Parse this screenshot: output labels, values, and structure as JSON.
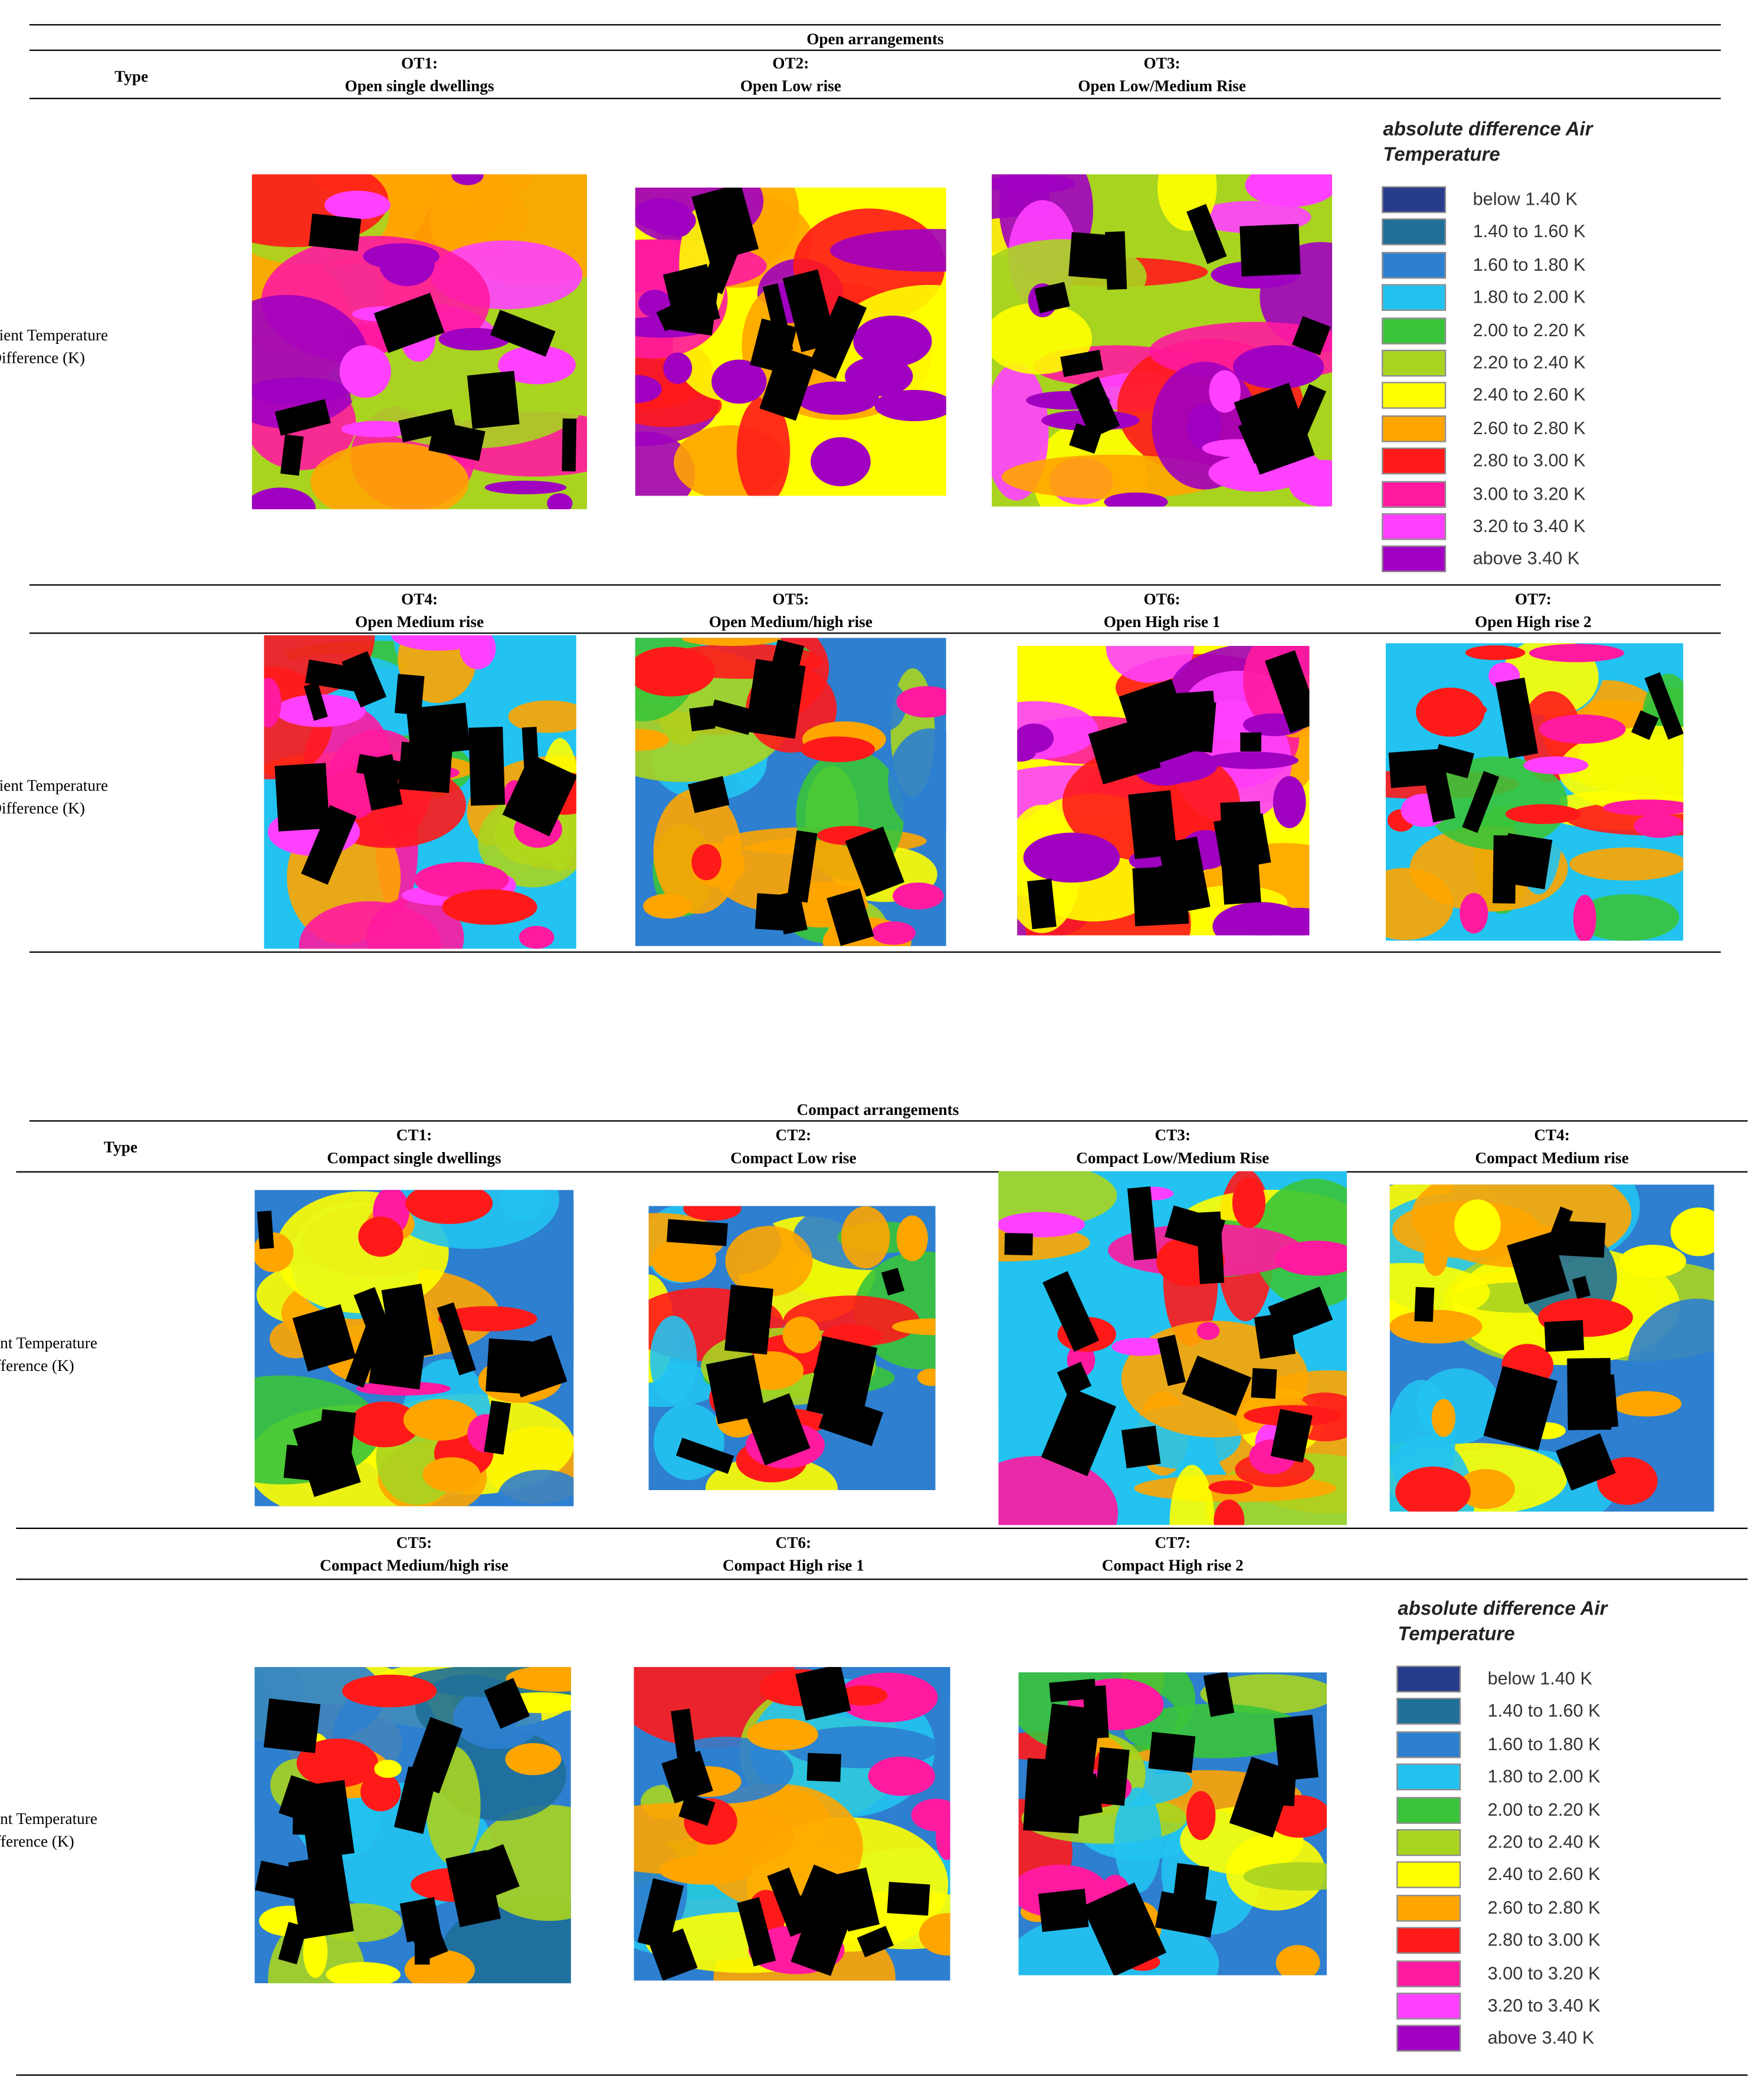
{
  "tables": [
    {
      "title": "Open arrangements",
      "type_header": "Type",
      "row_label": "Ambient Temperature Difference (K)",
      "panels": [
        {
          "id": "OT1:",
          "name": "Open single dwellings"
        },
        {
          "id": "OT2:",
          "name": "Open Low rise"
        },
        {
          "id": "OT3:",
          "name": "Open Low/Medium Rise"
        },
        {
          "id": "OT4:",
          "name": "Open Medium rise"
        },
        {
          "id": "OT5:",
          "name": "Open Medium/high rise"
        },
        {
          "id": "OT6:",
          "name": "Open High rise 1"
        },
        {
          "id": "OT7:",
          "name": "Open High rise 2"
        }
      ]
    },
    {
      "title": "Compact arrangements",
      "type_header": "Type",
      "row_label": "Ambient Temperature Difference (K)",
      "panels": [
        {
          "id": "CT1:",
          "name": "Compact single dwellings"
        },
        {
          "id": "CT2:",
          "name": "Compact Low rise"
        },
        {
          "id": "CT3:",
          "name": "Compact Low/Medium Rise"
        },
        {
          "id": "CT4:",
          "name": "Compact Medium rise"
        },
        {
          "id": "CT5:",
          "name": "Compact Medium/high rise"
        },
        {
          "id": "CT6:",
          "name": "Compact High rise 1"
        },
        {
          "id": "CT7:",
          "name": "Compact High rise 2"
        }
      ]
    }
  ],
  "legend": {
    "title": "absolute difference Air Temperature",
    "items": [
      {
        "label": "below 1.40 K",
        "color": "#283c8c"
      },
      {
        "label": "1.40 to 1.60 K",
        "color": "#1f6f99"
      },
      {
        "label": "1.60 to 1.80 K",
        "color": "#2e7fcf"
      },
      {
        "label": "1.80 to 2.00 K",
        "color": "#22c3f0"
      },
      {
        "label": "2.00 to 2.20 K",
        "color": "#3ac43a"
      },
      {
        "label": "2.20 to 2.40 K",
        "color": "#a8d420"
      },
      {
        "label": "2.40 to 2.60 K",
        "color": "#ffff00"
      },
      {
        "label": "2.60 to 2.80 K",
        "color": "#ffa500"
      },
      {
        "label": "2.80 to 3.00 K",
        "color": "#ff1a1a"
      },
      {
        "label": "3.00 to 3.20 K",
        "color": "#ff1aa0"
      },
      {
        "label": "3.20 to 3.40 K",
        "color": "#ff40ff"
      },
      {
        "label": "above 3.40 K",
        "color": "#a000c0"
      }
    ]
  }
}
